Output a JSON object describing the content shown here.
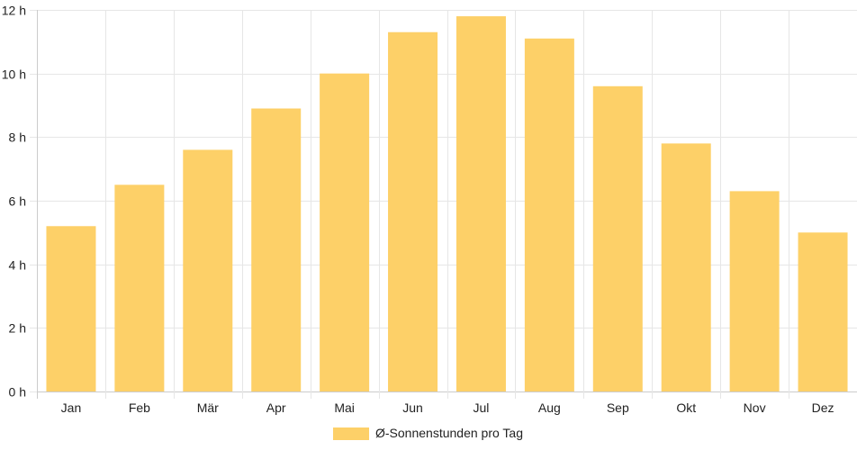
{
  "chart_data": {
    "type": "bar",
    "categories": [
      "Jan",
      "Feb",
      "Mär",
      "Apr",
      "Mai",
      "Jun",
      "Jul",
      "Aug",
      "Sep",
      "Okt",
      "Nov",
      "Dez"
    ],
    "series": [
      {
        "name": "Ø-Sonnenstunden pro Tag",
        "values": [
          5.2,
          6.5,
          7.6,
          8.9,
          10.0,
          11.3,
          11.8,
          11.1,
          9.6,
          7.8,
          6.3,
          5.0
        ]
      }
    ],
    "y_ticks": [
      "0 h",
      "2 h",
      "4 h",
      "6 h",
      "8 h",
      "10 h",
      "12 h"
    ],
    "ylim": [
      0,
      12
    ],
    "grid": true,
    "legend_position": "bottom",
    "bar_color": "#fdd068"
  }
}
